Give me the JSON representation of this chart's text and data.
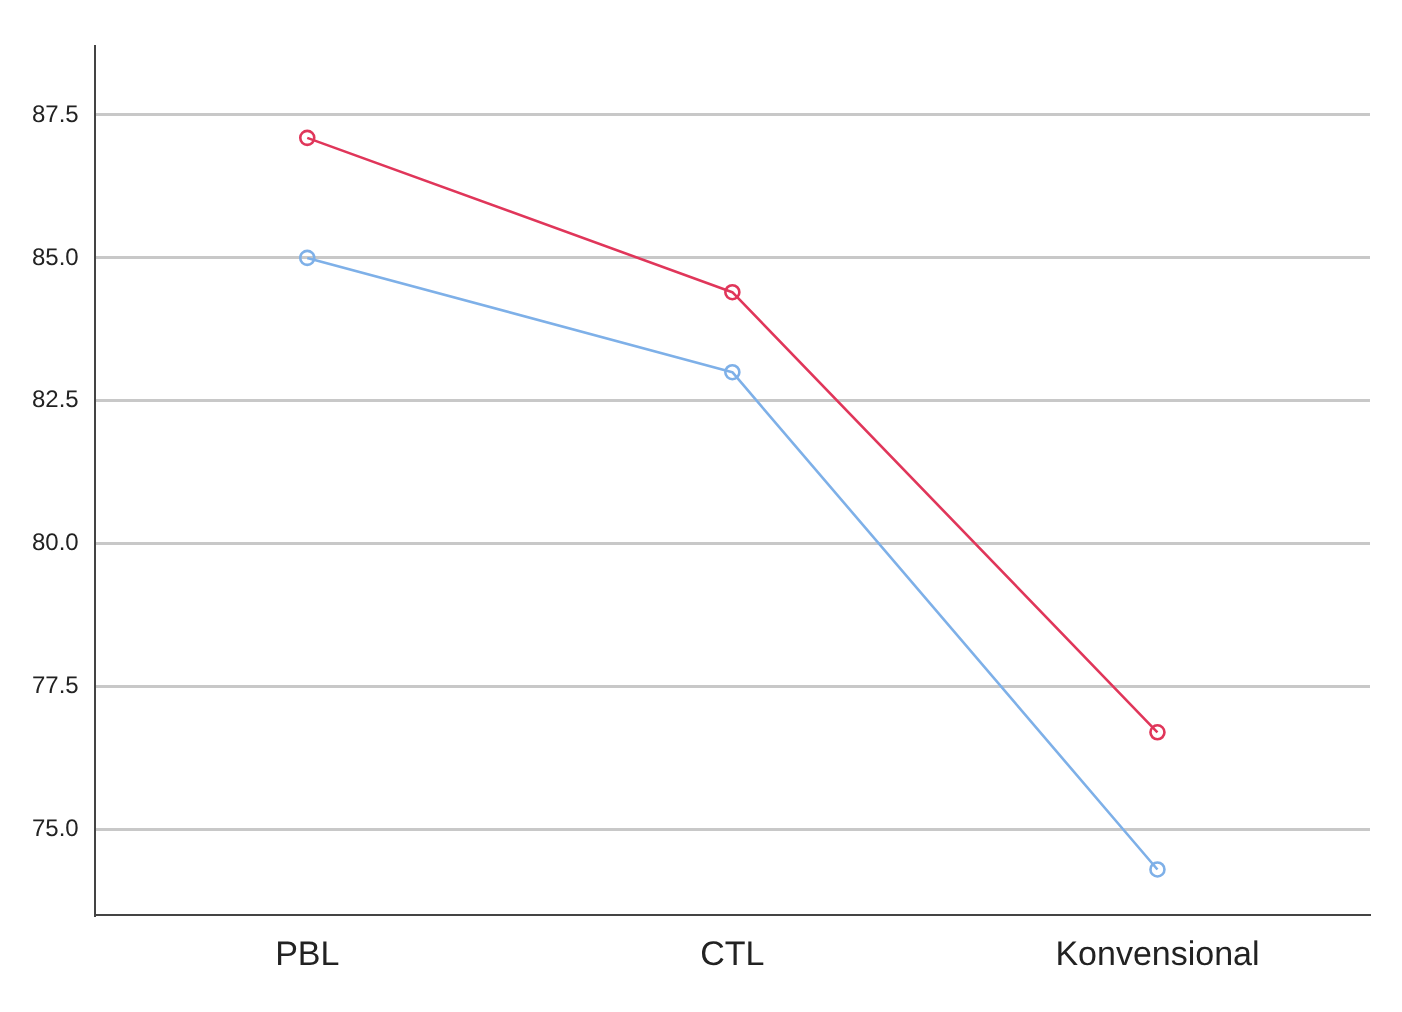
{
  "chart_data": {
    "type": "line",
    "categories": [
      "PBL",
      "CTL",
      "Konvensional"
    ],
    "series": [
      {
        "color": "#e0365a",
        "values": [
          87.1,
          84.4,
          76.7
        ]
      },
      {
        "color": "#7eb0e8",
        "values": [
          85.0,
          83.0,
          74.3
        ]
      }
    ],
    "ylim": [
      73.5,
      88.7
    ],
    "yticks": [
      {
        "value": 75,
        "label": "75.0"
      },
      {
        "value": 77.5,
        "label": "77.5"
      },
      {
        "value": 80,
        "label": "80.0"
      },
      {
        "value": 82.5,
        "label": "82.5"
      },
      {
        "value": 85,
        "label": "85.0"
      },
      {
        "value": 87.5,
        "label": "87.5"
      }
    ],
    "grid": "y",
    "legend": false,
    "marker": "circle",
    "line_style": "solid"
  }
}
